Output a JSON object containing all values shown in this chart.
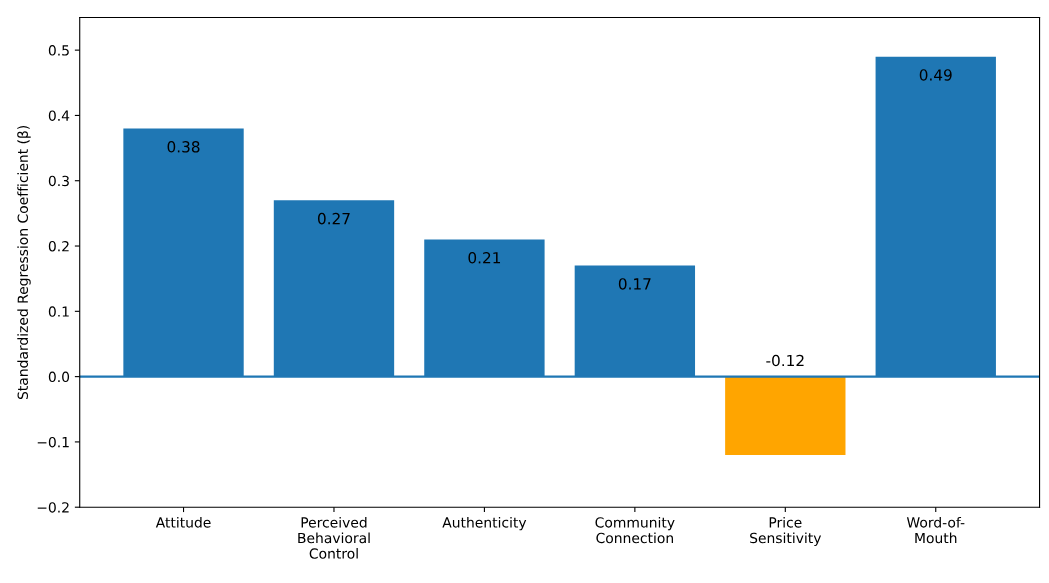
{
  "chart_data": {
    "type": "bar",
    "ylabel": "Standardized Regression Coefficient (β)",
    "categories": [
      "Attitude",
      "Perceived\nBehavioral\nControl",
      "Authenticity",
      "Community\nConnection",
      "Price\nSensitivity",
      "Word-of-\nMouth"
    ],
    "values": [
      0.38,
      0.27,
      0.21,
      0.17,
      -0.12,
      0.49
    ],
    "colors": [
      "#1f77b4",
      "#1f77b4",
      "#1f77b4",
      "#1f77b4",
      "#ffa500",
      "#1f77b4"
    ],
    "ylim": [
      -0.2,
      0.55
    ],
    "yticks": [
      {
        "value": -0.2,
        "label": "−0.2"
      },
      {
        "value": -0.1,
        "label": "−0.1"
      },
      {
        "value": 0,
        "label": "0.0"
      },
      0.1,
      0.2,
      0.3,
      0.4,
      0.5
    ],
    "ref_lines": [
      {
        "axis": "y",
        "value": 0,
        "color": "#1f77b4"
      }
    ],
    "data_labels": true,
    "grid": false,
    "legend": false
  }
}
